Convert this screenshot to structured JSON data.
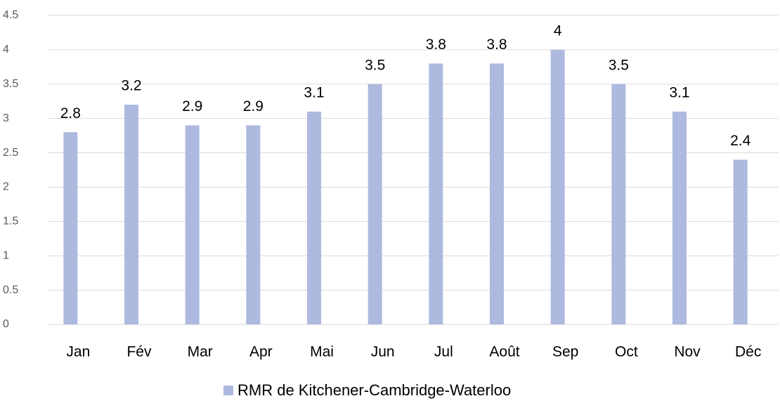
{
  "chart_data": {
    "type": "bar",
    "categories": [
      "Jan",
      "Fév",
      "Mar",
      "Apr",
      "Mai",
      "Jun",
      "Jul",
      "Août",
      "Sep",
      "Oct",
      "Nov",
      "Déc"
    ],
    "series": [
      {
        "name": "RMR de Kitchener-Cambridge-Waterloo",
        "color": "#aeb9df",
        "values": [
          2.8,
          3.2,
          2.9,
          2.9,
          3.1,
          3.5,
          3.8,
          3.8,
          4,
          3.5,
          3.1,
          2.4
        ]
      }
    ],
    "ylim": [
      0,
      4.5
    ],
    "yticks": [
      0,
      0.5,
      1,
      1.5,
      2,
      2.5,
      3,
      3.5,
      4,
      4.5
    ],
    "grid": true,
    "legend": "bottom",
    "data_labels": true
  }
}
